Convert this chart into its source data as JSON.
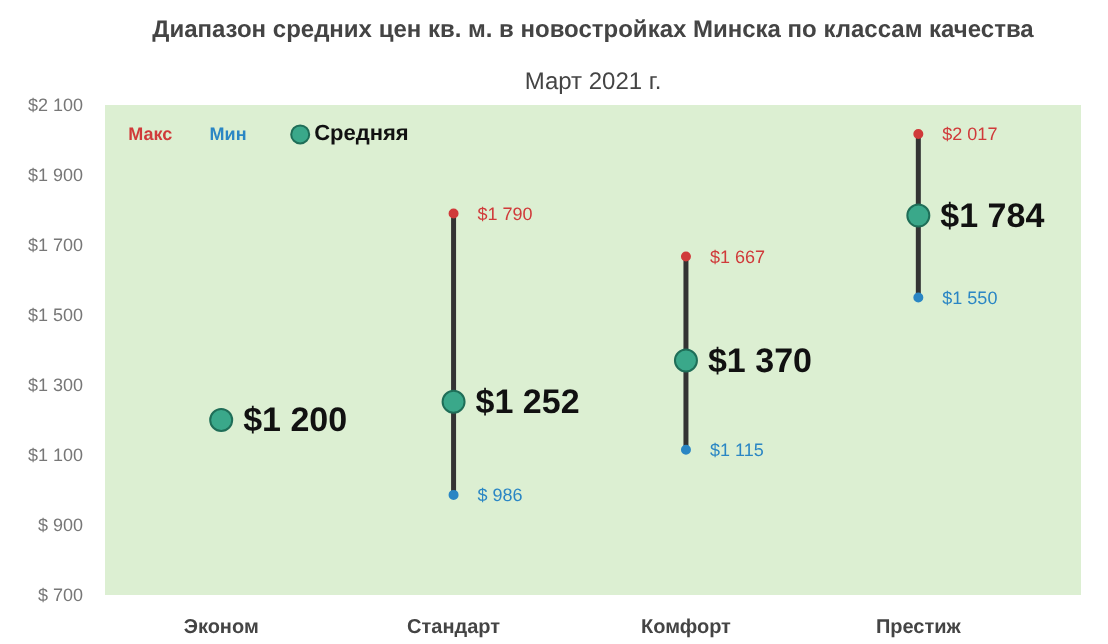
{
  "chart_data": {
    "type": "scatter",
    "title": "Диапазон средних цен кв. м. в новостройках Минска по классам качества",
    "subtitle": "Март 2021 г.",
    "categories": [
      "Эконом",
      "Стандарт",
      "Комфорт",
      "Престиж"
    ],
    "ylim": [
      700,
      2100
    ],
    "yticks": [
      {
        "value": 700,
        "label": "$ 700"
      },
      {
        "value": 900,
        "label": "$ 900"
      },
      {
        "value": 1100,
        "label": "$1 100"
      },
      {
        "value": 1300,
        "label": "$1 300"
      },
      {
        "value": 1500,
        "label": "$1 500"
      },
      {
        "value": 1700,
        "label": "$1 700"
      },
      {
        "value": 1900,
        "label": "$1 900"
      },
      {
        "value": 2100,
        "label": "$2 100"
      }
    ],
    "grid": false,
    "legend": "top left",
    "series": [
      {
        "name": "Макс",
        "color": "#d03a3a",
        "marker": "circle",
        "values": [
          null,
          1790,
          1667,
          2017
        ],
        "value_labels": [
          null,
          "$1 790",
          "$1 667",
          "$2 017"
        ]
      },
      {
        "name": "Мин",
        "color": "#2a86c4",
        "marker": "circle",
        "values": [
          null,
          986,
          1115,
          1550
        ],
        "value_labels": [
          null,
          "$ 986",
          "$1 115",
          "$1 550"
        ]
      },
      {
        "name": "Средняя",
        "color": "#3aa88a",
        "marker": "circle",
        "values": [
          1200,
          1252,
          1370,
          1784
        ],
        "value_labels": [
          "$1 200",
          "$1 252",
          "$1 370",
          "$1 784"
        ]
      }
    ]
  }
}
